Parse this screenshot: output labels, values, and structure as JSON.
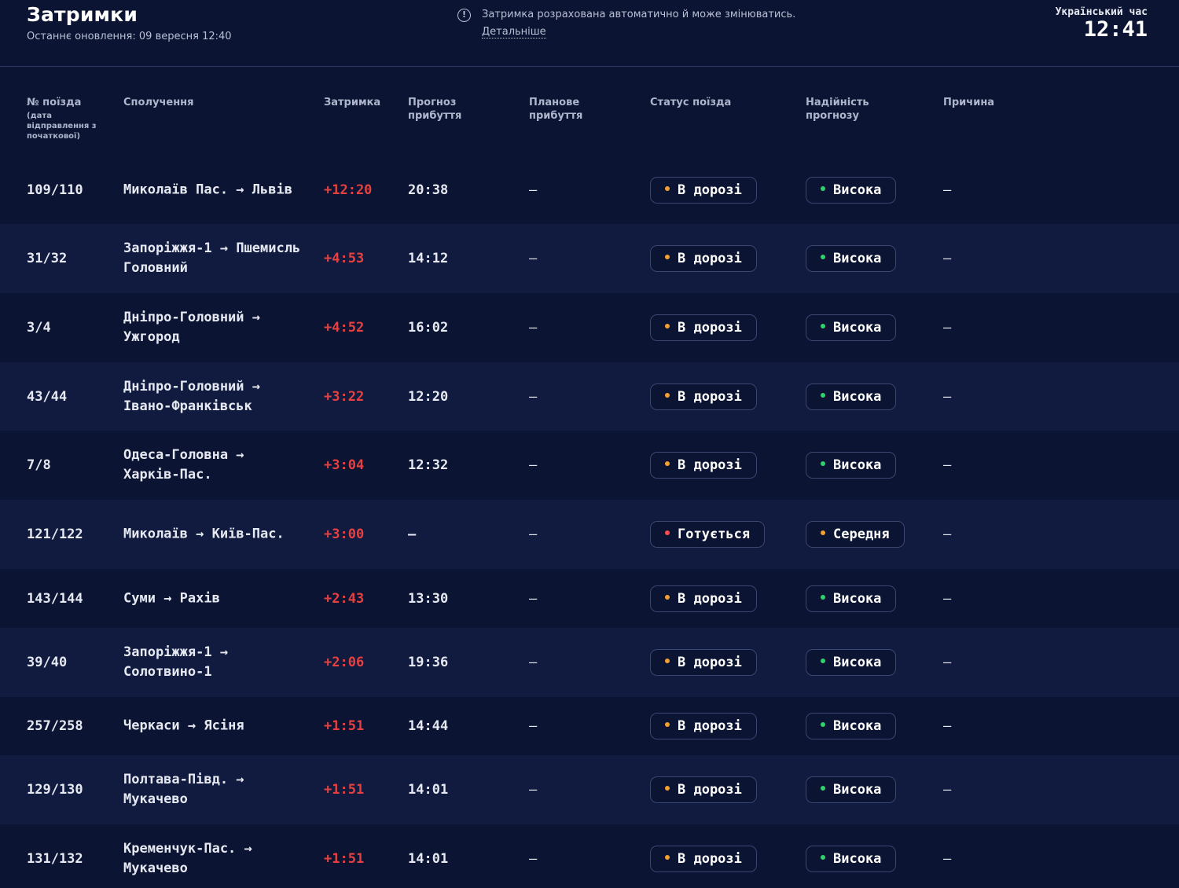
{
  "header": {
    "title": "Затримки",
    "updated": "Останнє оновлення: 09 вересня 12:40",
    "notice_text": "Затримка розрахована автоматично й може змінюватись.",
    "notice_link": "Детальніше",
    "notice_icon": "info-icon",
    "clock_label": "Український час",
    "clock_time": "12:41"
  },
  "colors": {
    "background": "#0b1433",
    "row_alt": "#111b3f",
    "delay": "#e54141",
    "dot_orange": "#f5a031",
    "dot_green": "#2fd36b",
    "dot_red": "#ff4d4d"
  },
  "columns": {
    "num": "№ поїзда",
    "num_sub": "(дата відправлення з початкової)",
    "route": "Сполучення",
    "delay": "Затримка",
    "forecast": "Прогноз прибуття",
    "planned": "Планове прибуття",
    "status": "Статус поїзда",
    "reliability": "Надійність прогнозу",
    "reason": "Причина"
  },
  "rows": [
    {
      "num": "109/110",
      "from": "Миколаїв Пас.",
      "to": "Львів",
      "delay": "+12:20",
      "forecast": "20:38",
      "planned": "—",
      "status": "В дорозі",
      "status_color": "#f5a031",
      "reliability": "Висока",
      "rel_color": "#2fd36b",
      "reason": "—"
    },
    {
      "num": "31/32",
      "from": "Запоріжжя-1",
      "to": "Пшемисль Головний",
      "delay": "+4:53",
      "forecast": "14:12",
      "planned": "—",
      "status": "В дорозі",
      "status_color": "#f5a031",
      "reliability": "Висока",
      "rel_color": "#2fd36b",
      "reason": "—"
    },
    {
      "num": "3/4",
      "from": "Дніпро-Головний",
      "to": "Ужгород",
      "delay": "+4:52",
      "forecast": "16:02",
      "planned": "—",
      "status": "В дорозі",
      "status_color": "#f5a031",
      "reliability": "Висока",
      "rel_color": "#2fd36b",
      "reason": "—"
    },
    {
      "num": "43/44",
      "from": "Дніпро-Головний",
      "to": "Івано-Франківськ",
      "delay": "+3:22",
      "forecast": "12:20",
      "planned": "—",
      "status": "В дорозі",
      "status_color": "#f5a031",
      "reliability": "Висока",
      "rel_color": "#2fd36b",
      "reason": "—"
    },
    {
      "num": "7/8",
      "from": "Одеса-Головна",
      "to": "Харків-Пас.",
      "delay": "+3:04",
      "forecast": "12:32",
      "planned": "—",
      "status": "В дорозі",
      "status_color": "#f5a031",
      "reliability": "Висока",
      "rel_color": "#2fd36b",
      "reason": "—"
    },
    {
      "num": "121/122",
      "from": "Миколаїв",
      "to": "Київ-Пас.",
      "delay": "+3:00",
      "forecast": "—",
      "planned": "—",
      "status": "Готується",
      "status_color": "#ff4d4d",
      "reliability": "Середня",
      "rel_color": "#f5a031",
      "reason": "—"
    },
    {
      "num": "143/144",
      "from": "Суми",
      "to": "Рахів",
      "delay": "+2:43",
      "forecast": "13:30",
      "planned": "—",
      "status": "В дорозі",
      "status_color": "#f5a031",
      "reliability": "Висока",
      "rel_color": "#2fd36b",
      "reason": "—"
    },
    {
      "num": "39/40",
      "from": "Запоріжжя-1",
      "to": "Солотвино-1",
      "delay": "+2:06",
      "forecast": "19:36",
      "planned": "—",
      "status": "В дорозі",
      "status_color": "#f5a031",
      "reliability": "Висока",
      "rel_color": "#2fd36b",
      "reason": "—"
    },
    {
      "num": "257/258",
      "from": "Черкаси",
      "to": "Ясіня",
      "delay": "+1:51",
      "forecast": "14:44",
      "planned": "—",
      "status": "В дорозі",
      "status_color": "#f5a031",
      "reliability": "Висока",
      "rel_color": "#2fd36b",
      "reason": "—"
    },
    {
      "num": "129/130",
      "from": "Полтава-Півд.",
      "to": "Мукачево",
      "delay": "+1:51",
      "forecast": "14:01",
      "planned": "—",
      "status": "В дорозі",
      "status_color": "#f5a031",
      "reliability": "Висока",
      "rel_color": "#2fd36b",
      "reason": "—"
    },
    {
      "num": "131/132",
      "from": "Кременчук-Пас.",
      "to": "Мукачево",
      "delay": "+1:51",
      "forecast": "14:01",
      "planned": "—",
      "status": "В дорозі",
      "status_color": "#f5a031",
      "reliability": "Висока",
      "rel_color": "#2fd36b",
      "reason": "—"
    }
  ]
}
